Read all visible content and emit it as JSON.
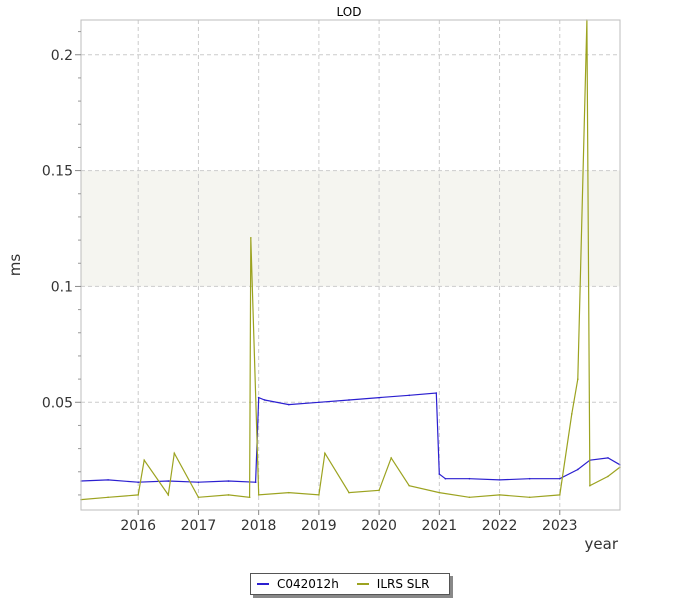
{
  "chart_data": {
    "type": "line",
    "title": "LOD",
    "xlabel": "year",
    "ylabel": "ms",
    "xlim": [
      2015.05,
      2024.0
    ],
    "ylim": [
      0.0035,
      0.215
    ],
    "x_ticks": [
      "2016",
      "2017",
      "2018",
      "2019",
      "2020",
      "2021",
      "2022",
      "2023"
    ],
    "y_ticks": [
      "0.05",
      "0.1",
      "0.15",
      "0.2"
    ],
    "shaded_band": [
      0.1,
      0.15
    ],
    "grid": true,
    "legend": "bottom",
    "series": [
      {
        "name": "C042012h",
        "color": "#2b1fd0",
        "x": [
          2015.05,
          2015.5,
          2016.0,
          2016.5,
          2017.0,
          2017.5,
          2017.95,
          2018.0,
          2018.1,
          2018.5,
          2019.0,
          2019.5,
          2020.0,
          2020.5,
          2020.95,
          2021.0,
          2021.1,
          2021.5,
          2022.0,
          2022.5,
          2023.0,
          2023.3,
          2023.5,
          2023.8,
          2024.0
        ],
        "y": [
          0.016,
          0.0165,
          0.0155,
          0.016,
          0.0155,
          0.016,
          0.0155,
          0.052,
          0.051,
          0.049,
          0.05,
          0.051,
          0.052,
          0.053,
          0.054,
          0.019,
          0.017,
          0.017,
          0.0165,
          0.017,
          0.017,
          0.021,
          0.025,
          0.026,
          0.023
        ]
      },
      {
        "name": "ILRS SLR",
        "color": "#9ca320",
        "x": [
          2015.05,
          2015.5,
          2016.0,
          2016.1,
          2016.5,
          2016.6,
          2017.0,
          2017.5,
          2017.85,
          2017.87,
          2018.0,
          2018.5,
          2019.0,
          2019.1,
          2019.5,
          2020.0,
          2020.2,
          2020.5,
          2021.0,
          2021.5,
          2022.0,
          2022.5,
          2023.0,
          2023.2,
          2023.3,
          2023.45,
          2023.5,
          2023.8,
          2024.0
        ],
        "y": [
          0.008,
          0.009,
          0.01,
          0.025,
          0.01,
          0.028,
          0.009,
          0.01,
          0.009,
          0.121,
          0.01,
          0.011,
          0.01,
          0.028,
          0.011,
          0.012,
          0.026,
          0.014,
          0.011,
          0.009,
          0.01,
          0.009,
          0.01,
          0.045,
          0.06,
          0.215,
          0.014,
          0.018,
          0.022
        ]
      }
    ]
  }
}
